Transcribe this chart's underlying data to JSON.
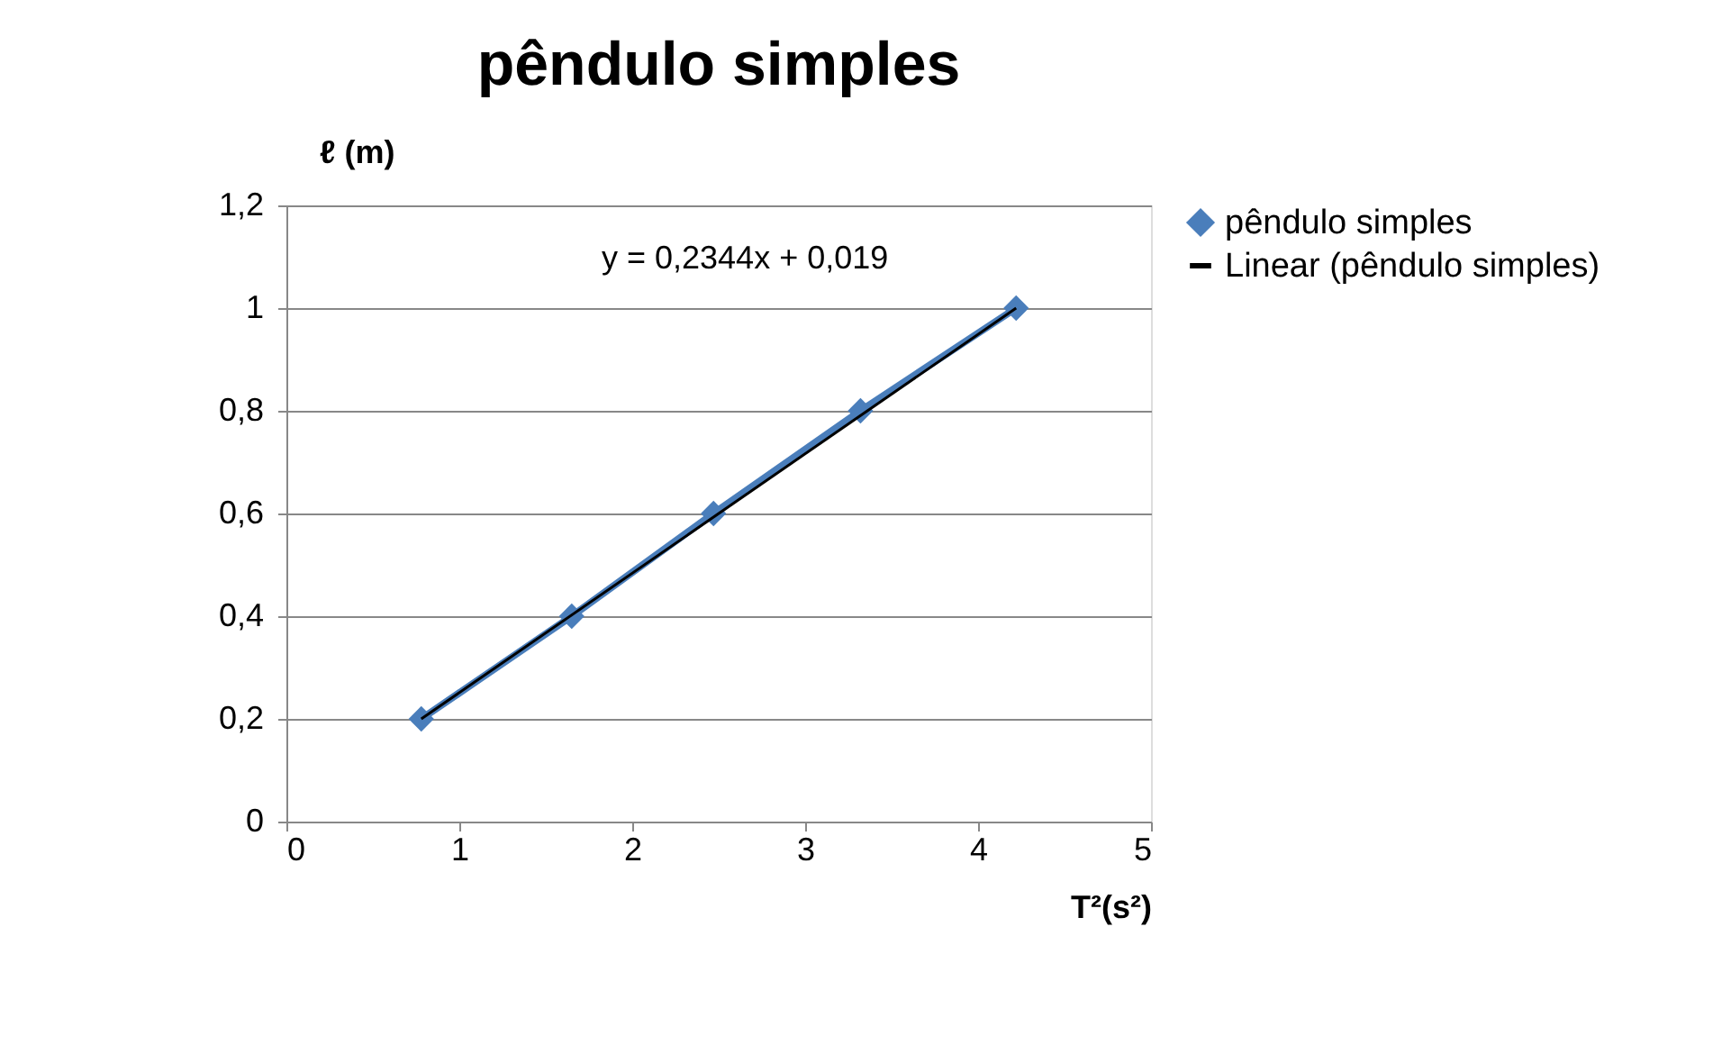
{
  "chart_data": {
    "type": "line",
    "title": "pêndulo simples",
    "xlabel": "T²(s²)",
    "ylabel": "ℓ  (m)",
    "xlim": [
      0,
      5
    ],
    "xticks": [
      0,
      1,
      2,
      3,
      4,
      5
    ],
    "ylim": [
      0,
      1.2
    ],
    "yticks": [
      0,
      {
        "value": 0.2,
        "label": "0,2"
      },
      {
        "value": 0.4,
        "label": "0,4"
      },
      {
        "value": 0.6,
        "label": "0,6"
      },
      {
        "value": 0.8,
        "label": "0,8"
      },
      1,
      {
        "value": 1.2,
        "label": "1,2"
      }
    ],
    "grid": "y",
    "legend": "right",
    "annotations": [
      "y = 0,2344x + 0,019"
    ],
    "series": [
      {
        "name": "pêndulo simples",
        "color": "#4a7ebb",
        "marker": "diamond",
        "x": [
          0.78,
          1.65,
          2.47,
          3.32,
          4.22
        ],
        "values": [
          0.2,
          0.4,
          0.6,
          0.8,
          1.0
        ]
      },
      {
        "name": "Linear (pêndulo simples)",
        "color": "#000000",
        "marker": "none",
        "x": [
          0.78,
          4.22
        ],
        "values": [
          0.2,
          1.0
        ]
      }
    ]
  }
}
